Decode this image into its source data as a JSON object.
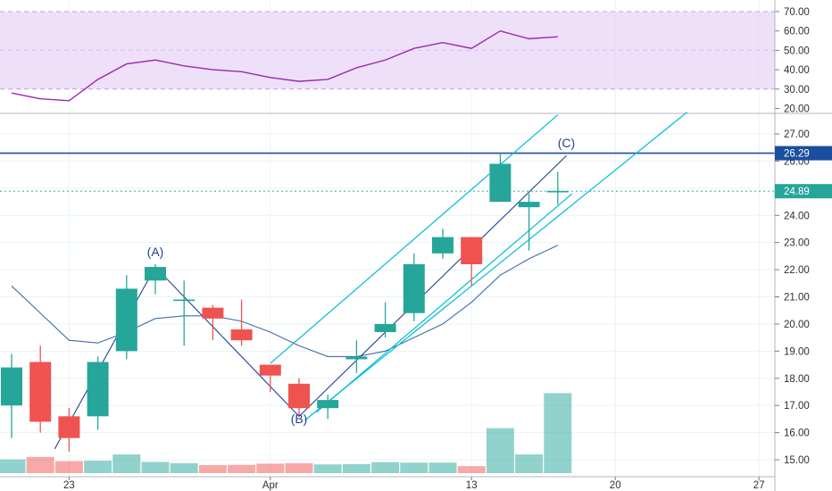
{
  "colors": {
    "up": "#26a69a",
    "down": "#ef5350",
    "up_volume": "#26a69a",
    "down_volume": "#ef5350",
    "rsi_line": "#9c27b0",
    "rsi_band": "#e8d5f7",
    "channel": "#00bcd4",
    "ma_line": "#3f6fa8",
    "wave_line": "#1f3f8f",
    "resistance_line": "#1a4ea0",
    "last_price_line": "#26a69a",
    "grid": "#e6f4f3",
    "text": "#2a2e39"
  },
  "rsi_panel": {
    "axis_labels": [
      "70.00",
      "60.00",
      "50.00",
      "40.00",
      "30.00",
      "20.00"
    ],
    "axis_values": [
      70,
      60,
      50,
      40,
      30,
      20
    ],
    "band": [
      30,
      70
    ],
    "ylim": [
      18,
      72
    ],
    "values": [
      28,
      25,
      24,
      35,
      43,
      45,
      42,
      40,
      39,
      36,
      34,
      35,
      41,
      45,
      51,
      54,
      51,
      60,
      56,
      57
    ]
  },
  "price_axis": {
    "labels": [
      "27.00",
      "26.00",
      "25.00",
      "24.00",
      "23.00",
      "22.00",
      "21.00",
      "20.00",
      "19.00",
      "18.00",
      "17.00",
      "16.00",
      "15.00"
    ],
    "values": [
      27,
      26,
      25,
      24,
      23,
      22,
      21,
      20,
      19,
      18,
      17,
      16,
      15
    ]
  },
  "x_axis": {
    "labels": [
      "23",
      "Apr",
      "13",
      "20",
      "27"
    ],
    "bar_index": [
      2,
      9,
      16,
      21,
      26
    ]
  },
  "price_levels": {
    "resistance": {
      "value": 26.29,
      "label": "26.29"
    },
    "last_price": {
      "value": 24.89,
      "label": "24.89"
    }
  },
  "wave_labels": [
    {
      "text": "(A)",
      "bar": 5,
      "price": 22.5
    },
    {
      "text": "(B)",
      "bar": 10,
      "price": 16.35
    },
    {
      "text": "(C)",
      "bar": 19.3,
      "price": 26.5
    }
  ],
  "chart_data": {
    "type": "candlestick",
    "x_labels": [
      "23",
      "Apr",
      "13",
      "20",
      "27"
    ],
    "ylim": [
      14.7,
      27.8
    ],
    "candles": [
      {
        "o": 17.0,
        "h": 18.9,
        "l": 15.8,
        "c": 18.4
      },
      {
        "o": 18.6,
        "h": 19.2,
        "l": 16.0,
        "c": 16.4
      },
      {
        "o": 16.6,
        "h": 16.9,
        "l": 15.3,
        "c": 15.8
      },
      {
        "o": 16.6,
        "h": 18.8,
        "l": 16.1,
        "c": 18.6
      },
      {
        "o": 19.0,
        "h": 21.8,
        "l": 18.7,
        "c": 21.3
      },
      {
        "o": 21.6,
        "h": 22.2,
        "l": 21.1,
        "c": 22.1
      },
      {
        "o": 20.9,
        "h": 21.6,
        "l": 19.2,
        "c": 20.9
      },
      {
        "o": 20.6,
        "h": 20.7,
        "l": 19.4,
        "c": 20.2
      },
      {
        "o": 19.8,
        "h": 20.9,
        "l": 19.2,
        "c": 19.4
      },
      {
        "o": 18.5,
        "h": 18.5,
        "l": 17.5,
        "c": 18.1
      },
      {
        "o": 17.8,
        "h": 18.0,
        "l": 16.6,
        "c": 16.9
      },
      {
        "o": 16.9,
        "h": 17.4,
        "l": 16.5,
        "c": 17.2
      },
      {
        "o": 18.7,
        "h": 19.4,
        "l": 18.2,
        "c": 18.8
      },
      {
        "o": 19.7,
        "h": 20.8,
        "l": 19.5,
        "c": 20.0
      },
      {
        "o": 20.4,
        "h": 22.6,
        "l": 20.1,
        "c": 22.2
      },
      {
        "o": 22.6,
        "h": 23.5,
        "l": 22.4,
        "c": 23.2
      },
      {
        "o": 23.2,
        "h": 23.2,
        "l": 21.4,
        "c": 22.2
      },
      {
        "o": 24.5,
        "h": 26.3,
        "l": 24.5,
        "c": 25.9
      },
      {
        "o": 24.3,
        "h": 24.8,
        "l": 22.7,
        "c": 24.5
      },
      {
        "o": 24.9,
        "h": 25.6,
        "l": 24.4,
        "c": 24.9
      }
    ],
    "volume": [
      0.55,
      0.65,
      0.48,
      0.5,
      0.75,
      0.45,
      0.4,
      0.32,
      0.33,
      0.38,
      0.4,
      0.35,
      0.36,
      0.44,
      0.42,
      0.42,
      0.28,
      1.8,
      0.75,
      3.2
    ],
    "moving_average": [
      21.4,
      20.4,
      19.4,
      19.3,
      19.7,
      20.2,
      20.3,
      20.3,
      20.1,
      19.7,
      19.2,
      18.8,
      18.8,
      19.0,
      19.5,
      20.0,
      20.8,
      21.8,
      22.4,
      22.9
    ],
    "channel_lines": [
      {
        "from": [
          9.0,
          18.55
        ],
        "to": [
          19.0,
          27.7
        ]
      },
      {
        "from": [
          10.6,
          16.75
        ],
        "to": [
          19.5,
          24.8
        ]
      },
      {
        "from": [
          10.2,
          16.45
        ],
        "to": [
          23.5,
          27.8
        ]
      }
    ],
    "wave_path": [
      [
        1.5,
        15.4
      ],
      [
        5.0,
        22.1
      ],
      [
        10.0,
        16.6
      ],
      [
        19.3,
        26.2
      ]
    ]
  }
}
